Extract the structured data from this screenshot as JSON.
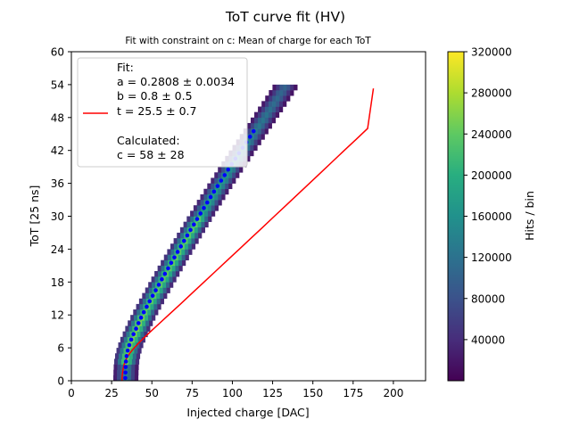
{
  "chart_data": {
    "type": "heatmap",
    "title": "ToT curve fit (HV)",
    "subtitle": "Fit with constraint on c: Mean of charge for each ToT",
    "xlabel": "Injected charge [DAC]",
    "ylabel": "ToT [25 ns]",
    "xlim": [
      0,
      220
    ],
    "ylim": [
      0,
      60
    ],
    "x_ticks": [
      "0",
      "25",
      "50",
      "75",
      "100",
      "125",
      "150",
      "175",
      "200"
    ],
    "y_ticks": [
      "0",
      "6",
      "12",
      "18",
      "24",
      "30",
      "36",
      "42",
      "48",
      "54",
      "60"
    ],
    "colorbar": {
      "label": "Hits / bin",
      "range": [
        0,
        320000
      ],
      "ticks": [
        "40000",
        "80000",
        "120000",
        "160000",
        "200000",
        "240000",
        "280000",
        "320000"
      ],
      "colormap": "viridis"
    },
    "grid": false,
    "legend": {
      "position": "top-left",
      "fit_header": "Fit:",
      "fit_a": "a = 0.2808 ± 0.0034",
      "fit_b": "b = 0.8 ± 0.5",
      "fit_t": "t = 25.5 ± 0.7",
      "calc_header": "Calculated:",
      "calc_c": "c = 58 ± 28"
    },
    "fit_params": {
      "a": 0.2808,
      "b": 0.8,
      "t": 25.5,
      "c": 58
    },
    "fit_curve": {
      "color": "#ff0000",
      "x": [
        31.4,
        31.6,
        32.0,
        32.8,
        34.1,
        36.2,
        39.0,
        42.2,
        45.7,
        49.3,
        53.0,
        60.4,
        67.8,
        75.1,
        82.4,
        89.7,
        97.0,
        104.3,
        111.6,
        118.9,
        126.1,
        133.4,
        140.6,
        147.9,
        155.1,
        162.3,
        169.5,
        176.8,
        184.0,
        187.6
      ],
      "y": [
        0,
        1,
        2,
        3,
        4,
        5,
        6,
        7,
        8,
        9,
        10,
        12,
        14,
        16,
        18,
        20,
        22,
        24,
        26,
        28,
        30,
        32,
        34,
        36,
        38,
        40,
        42,
        44,
        46,
        53.3
      ]
    },
    "mean_points": {
      "color": "#0000ff",
      "tot": [
        0,
        1,
        2,
        3,
        4,
        5,
        6,
        7,
        8,
        9,
        10,
        11,
        12,
        13,
        14,
        15,
        16,
        17,
        18,
        19,
        20,
        21,
        22,
        23,
        24,
        25,
        26,
        27,
        28,
        29,
        30,
        31,
        32,
        33,
        34,
        35,
        36,
        37,
        38,
        39,
        40,
        41,
        42,
        43,
        44,
        45
      ],
      "charge": [
        33.5,
        33.6,
        33.7,
        33.9,
        34.3,
        35.0,
        36.0,
        37.2,
        38.6,
        40.2,
        41.7,
        43.3,
        45.0,
        46.8,
        48.6,
        50.5,
        52.4,
        54.3,
        56.2,
        58.1,
        60.1,
        62.0,
        64.0,
        66.0,
        68.0,
        70.0,
        72.0,
        74.0,
        76.1,
        78.1,
        80.2,
        82.3,
        84.4,
        86.5,
        88.6,
        90.8,
        93.0,
        95.2,
        97.4,
        99.6,
        101.9,
        104.1,
        106.4,
        108.7,
        111.0,
        113.2
      ]
    },
    "heatmap_band": {
      "note": "ToT rows 0-54 (bin width 1), each row covers charge ~(mean-7.5, mean+7.5); counts peak near the mean",
      "tot_max": 54,
      "half_width": 7.5
    }
  }
}
